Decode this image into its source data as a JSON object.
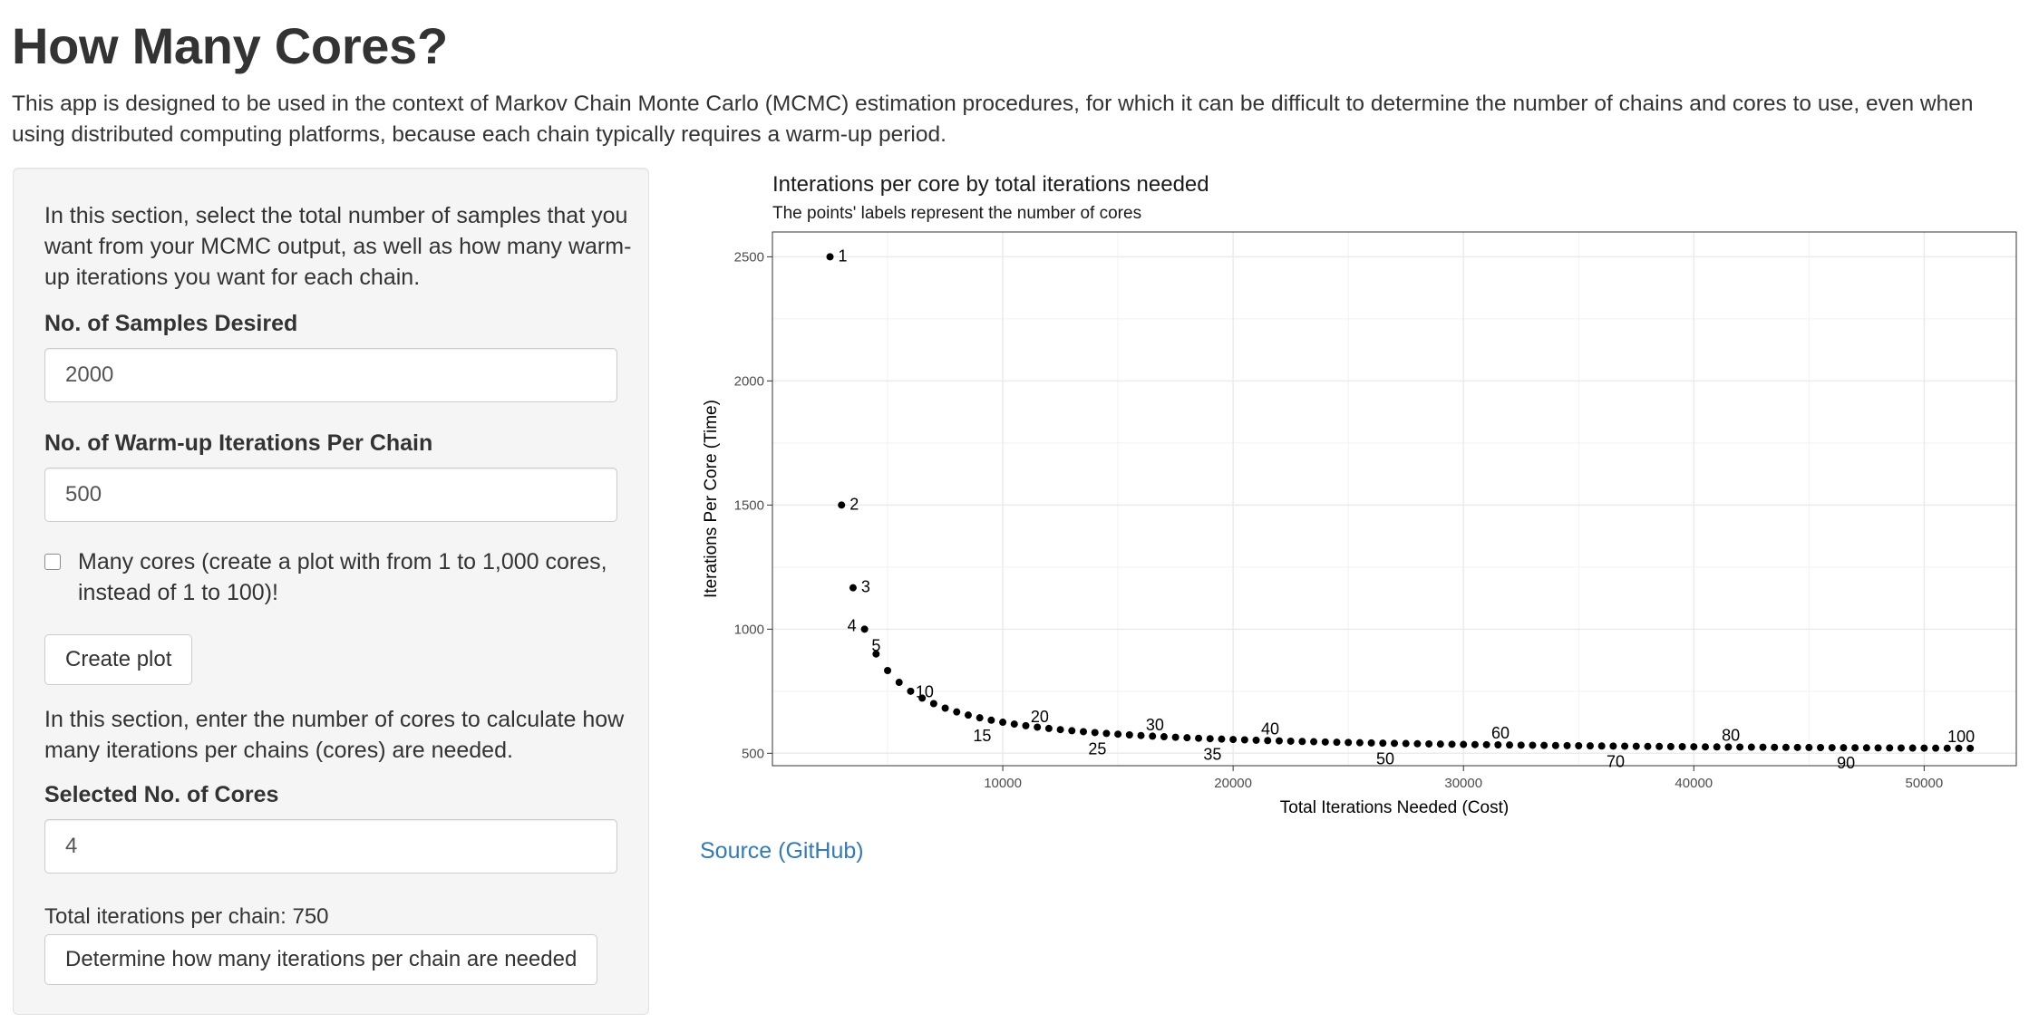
{
  "page": {
    "title": "How Many Cores?",
    "intro": "This app is designed to be used in the context of Markov Chain Monte Carlo (MCMC) estimation procedures, for which it can be difficult to determine the number of chains and cores to use, even when using distributed computing platforms, because each chain typically requires a warm-up period."
  },
  "sidebar": {
    "intro_text": "In this section, select the total number of samples that you want from your MCMC output, as well as how many warm-up iterations you want for each chain.",
    "samples_label": "No. of Samples Desired",
    "samples_value": "2000",
    "warmup_label": "No. of Warm-up Iterations Per Chain",
    "warmup_value": "500",
    "many_cores_label": "Many cores (create a plot with from 1 to 1,000 cores, instead of 1 to 100)!",
    "many_cores_checked": false,
    "create_plot_label": "Create plot",
    "cores_intro": "In this section, enter the number of cores to calculate how many iterations per chains (cores) are needed.",
    "cores_label": "Selected No. of Cores",
    "cores_value": "4",
    "total_iterations_text": "Total iterations per chain: 750",
    "determine_label": "Determine how many iterations per chain are needed"
  },
  "links": {
    "source_label": "Source (GitHub)"
  },
  "chart_data": {
    "type": "scatter",
    "title": "Interations per core by total iterations needed",
    "subtitle": "The points' labels represent the number of cores",
    "xlabel": "Total Iterations Needed (Cost)",
    "ylabel": "Iterations Per Core (Time)",
    "samples": 2000,
    "warmup": 500,
    "cores": [
      1,
      2,
      3,
      4,
      5,
      6,
      7,
      8,
      9,
      10,
      11,
      12,
      13,
      14,
      15,
      16,
      17,
      18,
      19,
      20,
      21,
      22,
      23,
      24,
      25,
      26,
      27,
      28,
      29,
      30,
      31,
      32,
      33,
      34,
      35,
      36,
      37,
      38,
      39,
      40,
      41,
      42,
      43,
      44,
      45,
      46,
      47,
      48,
      49,
      50,
      51,
      52,
      53,
      54,
      55,
      56,
      57,
      58,
      59,
      60,
      61,
      62,
      63,
      64,
      65,
      66,
      67,
      68,
      69,
      70,
      71,
      72,
      73,
      74,
      75,
      76,
      77,
      78,
      79,
      80,
      81,
      82,
      83,
      84,
      85,
      86,
      87,
      88,
      89,
      90,
      91,
      92,
      93,
      94,
      95,
      96,
      97,
      98,
      99,
      100
    ],
    "x_values": [
      2500,
      3000,
      3500,
      4000,
      4500,
      5000,
      5500,
      6000,
      6500,
      7000,
      7500,
      8000,
      8500,
      9000,
      9500,
      10000,
      10500,
      11000,
      11500,
      12000,
      12500,
      13000,
      13500,
      14000,
      14500,
      15000,
      15500,
      16000,
      16500,
      17000,
      17500,
      18000,
      18500,
      19000,
      19500,
      20000,
      20500,
      21000,
      21500,
      22000,
      22500,
      23000,
      23500,
      24000,
      24500,
      25000,
      25500,
      26000,
      26500,
      27000,
      27500,
      28000,
      28500,
      29000,
      29500,
      30000,
      30500,
      31000,
      31500,
      32000,
      32500,
      33000,
      33500,
      34000,
      34500,
      35000,
      35500,
      36000,
      36500,
      37000,
      37500,
      38000,
      38500,
      39000,
      39500,
      40000,
      40500,
      41000,
      41500,
      42000,
      42500,
      43000,
      43500,
      44000,
      44500,
      45000,
      45500,
      46000,
      46500,
      47000,
      47500,
      48000,
      48500,
      49000,
      49500,
      50000,
      50500,
      51000,
      51500,
      52000
    ],
    "y_values": [
      2500,
      1500,
      1166.67,
      1000,
      900,
      833.33,
      785.71,
      750,
      722.22,
      700,
      681.82,
      666.67,
      653.85,
      642.86,
      633.33,
      625,
      617.65,
      611.11,
      605.26,
      600,
      595.24,
      590.91,
      586.96,
      583.33,
      580,
      576.92,
      574.07,
      571.43,
      568.97,
      566.67,
      564.52,
      562.5,
      560.61,
      558.82,
      557.14,
      555.56,
      554.05,
      552.63,
      551.28,
      550,
      548.78,
      547.62,
      546.51,
      545.45,
      544.44,
      543.48,
      542.55,
      541.67,
      540.82,
      540,
      539.22,
      538.46,
      537.74,
      537.04,
      536.36,
      535.71,
      535.09,
      534.48,
      533.9,
      533.33,
      532.79,
      532.26,
      531.75,
      531.25,
      530.77,
      530.3,
      529.85,
      529.41,
      528.99,
      528.57,
      528.17,
      527.78,
      527.4,
      527.03,
      526.67,
      526.32,
      525.97,
      525.64,
      525.32,
      525,
      524.69,
      524.39,
      524.1,
      523.81,
      523.53,
      523.26,
      522.99,
      522.73,
      522.47,
      522.22,
      521.98,
      521.74,
      521.51,
      521.28,
      521.05,
      520.83,
      520.62,
      520.41,
      520.2,
      520
    ],
    "labeled_cores": [
      1,
      2,
      3,
      4,
      5,
      10,
      15,
      20,
      25,
      30,
      35,
      40,
      50,
      60,
      70,
      80,
      90,
      100
    ],
    "x_ticks": [
      10000,
      20000,
      30000,
      40000,
      50000
    ],
    "y_ticks": [
      500,
      1000,
      1500,
      2000,
      2500
    ],
    "xlim": [
      0,
      54000
    ],
    "ylim": [
      450,
      2600
    ],
    "grid": true,
    "legend": "none",
    "point_color": "#000000"
  }
}
